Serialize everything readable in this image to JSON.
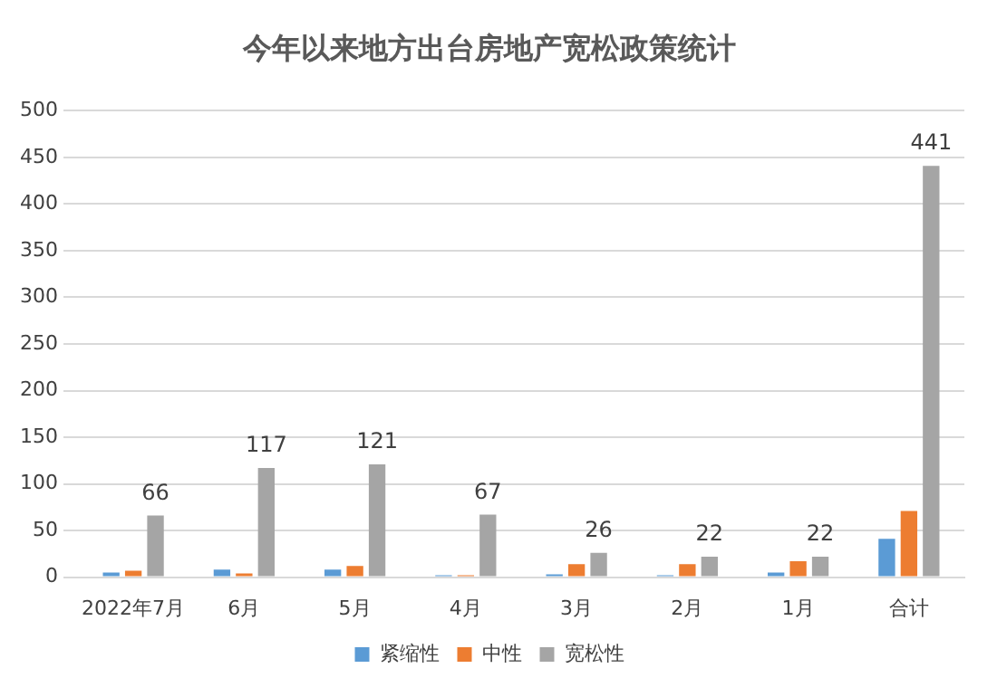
{
  "chart_data": {
    "type": "bar",
    "title": "今年以来地方出台房地产宽松政策统计",
    "categories": [
      "2022年7月",
      "6月",
      "5月",
      "4月",
      "3月",
      "2月",
      "1月",
      "合计"
    ],
    "series": [
      {
        "name": "紧缩性",
        "color": "#5b9bd5",
        "values": [
          5,
          8,
          8,
          2,
          3,
          2,
          5,
          41
        ]
      },
      {
        "name": "中性",
        "color": "#ed7d31",
        "values": [
          7,
          4,
          12,
          2,
          14,
          14,
          17,
          71
        ]
      },
      {
        "name": "宽松性",
        "color": "#a5a5a5",
        "values": [
          66,
          117,
          121,
          67,
          26,
          22,
          22,
          441
        ],
        "value_labels": [
          "66",
          "117",
          "121",
          "67",
          "26",
          "22",
          "22",
          "441"
        ]
      }
    ],
    "ylim": [
      0,
      500
    ],
    "yticks": [
      0,
      50,
      100,
      150,
      200,
      250,
      300,
      350,
      400,
      450,
      500
    ],
    "grid": "y",
    "legend": "bottom"
  }
}
